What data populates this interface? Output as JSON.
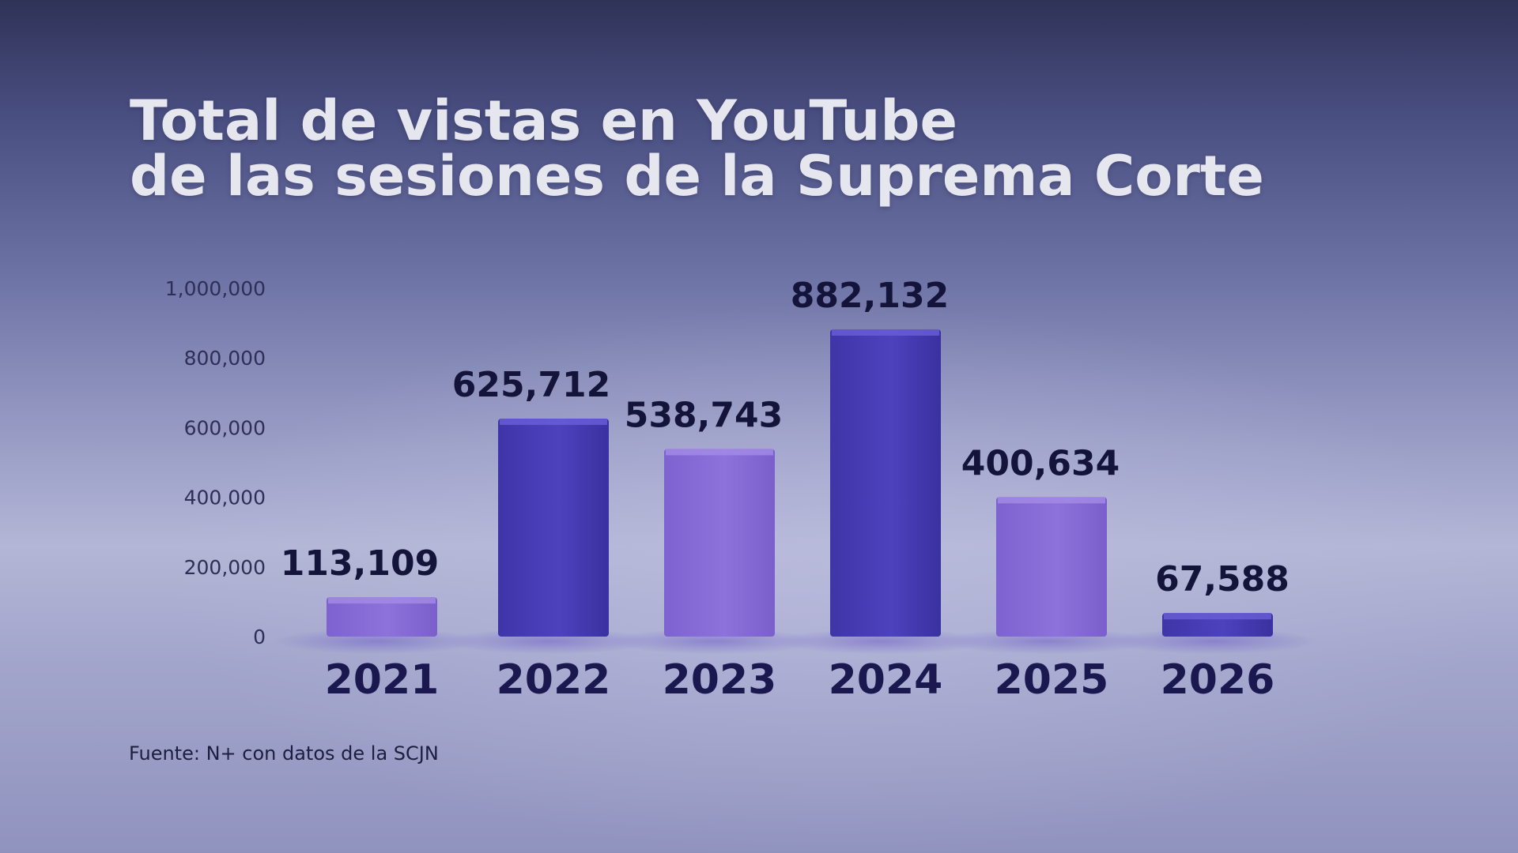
{
  "chart_data": {
    "type": "bar",
    "title_lines": [
      "Total de vistas en YouTube",
      "de las sesiones de la Suprema Corte"
    ],
    "categories": [
      "2021",
      "2022",
      "2023",
      "2024",
      "2025",
      "2026"
    ],
    "values": [
      113109,
      625712,
      538743,
      882132,
      400634,
      67588
    ],
    "value_labels": [
      "113,109",
      "625,712",
      "538,743",
      "882,132",
      "400,634",
      "67,588"
    ],
    "y_ticks": [
      0,
      200000,
      400000,
      600000,
      800000,
      1000000
    ],
    "y_tick_labels": [
      "0",
      "200,000",
      "400,000",
      "600,000",
      "800,000",
      "1,000,000"
    ],
    "ylim": [
      0,
      1000000
    ],
    "grid": false,
    "legend": "none",
    "bar_colors": [
      "#8a6ed6",
      "#4a3fb5",
      "#8a6ed6",
      "#4a3fb5",
      "#8a6ed6",
      "#4a3fb5"
    ],
    "source": "Fuente: N+ con datos de la SCJN"
  }
}
